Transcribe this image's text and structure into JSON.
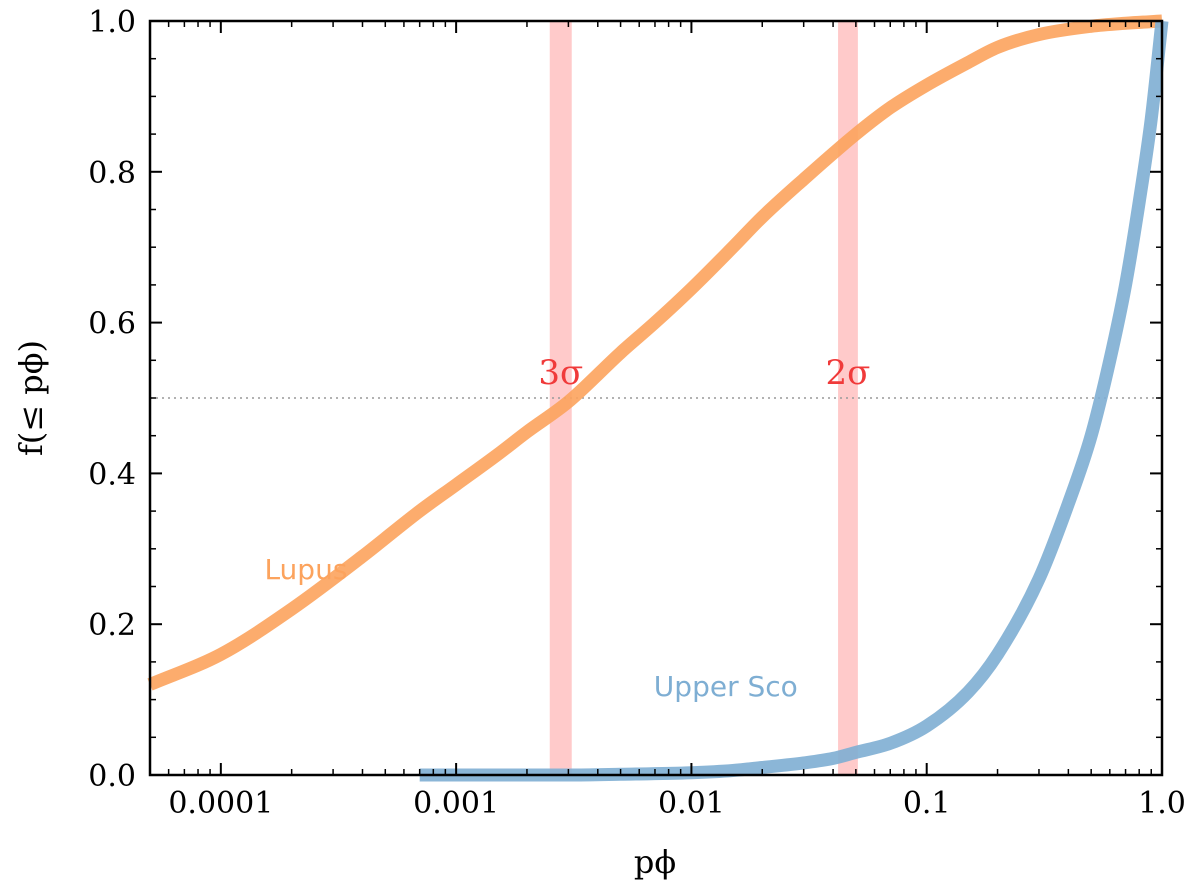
{
  "chart_data": {
    "type": "line",
    "title": "",
    "xlabel": "pϕ",
    "ylabel": "f(≤ pϕ)",
    "xscale": "log",
    "xlim": [
      5e-05,
      1.0
    ],
    "ylim": [
      0.0,
      1.0
    ],
    "grid": false,
    "x_ticks": [
      {
        "value": 0.0001,
        "label": "0.0001"
      },
      {
        "value": 0.001,
        "label": "0.001"
      },
      {
        "value": 0.01,
        "label": "0.01"
      },
      {
        "value": 0.1,
        "label": "0.1"
      },
      {
        "value": 1.0,
        "label": "1.0"
      }
    ],
    "y_ticks": [
      {
        "value": 0.0,
        "label": "0.0"
      },
      {
        "value": 0.2,
        "label": "0.2"
      },
      {
        "value": 0.4,
        "label": "0.4"
      },
      {
        "value": 0.6,
        "label": "0.6"
      },
      {
        "value": 0.8,
        "label": "0.8"
      },
      {
        "value": 1.0,
        "label": "1.0"
      }
    ],
    "reference_line": {
      "y": 0.5,
      "style": "dotted",
      "color": "#999999"
    },
    "bands": [
      {
        "label": "3σ",
        "x_from": 0.0025,
        "x_to": 0.0031,
        "color": "#ff9e9e"
      },
      {
        "label": "2σ",
        "x_from": 0.042,
        "x_to": 0.051,
        "color": "#ff9e9e"
      }
    ],
    "band_label_color": "#f03a3a",
    "series": [
      {
        "name": "Lupus",
        "color": "#fca35d",
        "label_at": {
          "x": 0.00023,
          "y": 0.26
        },
        "x": [
          5e-05,
          0.0001,
          0.0002,
          0.0004,
          0.0007,
          0.001,
          0.0015,
          0.002,
          0.003,
          0.005,
          0.007,
          0.01,
          0.015,
          0.02,
          0.03,
          0.05,
          0.07,
          0.1,
          0.15,
          0.2,
          0.3,
          0.5,
          0.7,
          1.0
        ],
        "values": [
          0.12,
          0.16,
          0.22,
          0.29,
          0.35,
          0.385,
          0.425,
          0.455,
          0.495,
          0.56,
          0.6,
          0.645,
          0.7,
          0.74,
          0.79,
          0.85,
          0.885,
          0.915,
          0.945,
          0.965,
          0.982,
          0.993,
          0.997,
          1.0
        ]
      },
      {
        "name": "Upper Sco",
        "color": "#7eaed3",
        "label_at": {
          "x": 0.014,
          "y": 0.105
        },
        "x": [
          0.0007,
          0.001,
          0.003,
          0.005,
          0.01,
          0.015,
          0.02,
          0.03,
          0.04,
          0.05,
          0.07,
          0.1,
          0.15,
          0.2,
          0.3,
          0.4,
          0.5,
          0.6,
          0.7,
          0.8,
          0.9,
          1.0
        ],
        "values": [
          0.0,
          0.0,
          0.0,
          0.001,
          0.003,
          0.006,
          0.01,
          0.016,
          0.022,
          0.03,
          0.042,
          0.065,
          0.11,
          0.16,
          0.26,
          0.36,
          0.45,
          0.55,
          0.65,
          0.76,
          0.87,
          1.0
        ]
      }
    ]
  }
}
